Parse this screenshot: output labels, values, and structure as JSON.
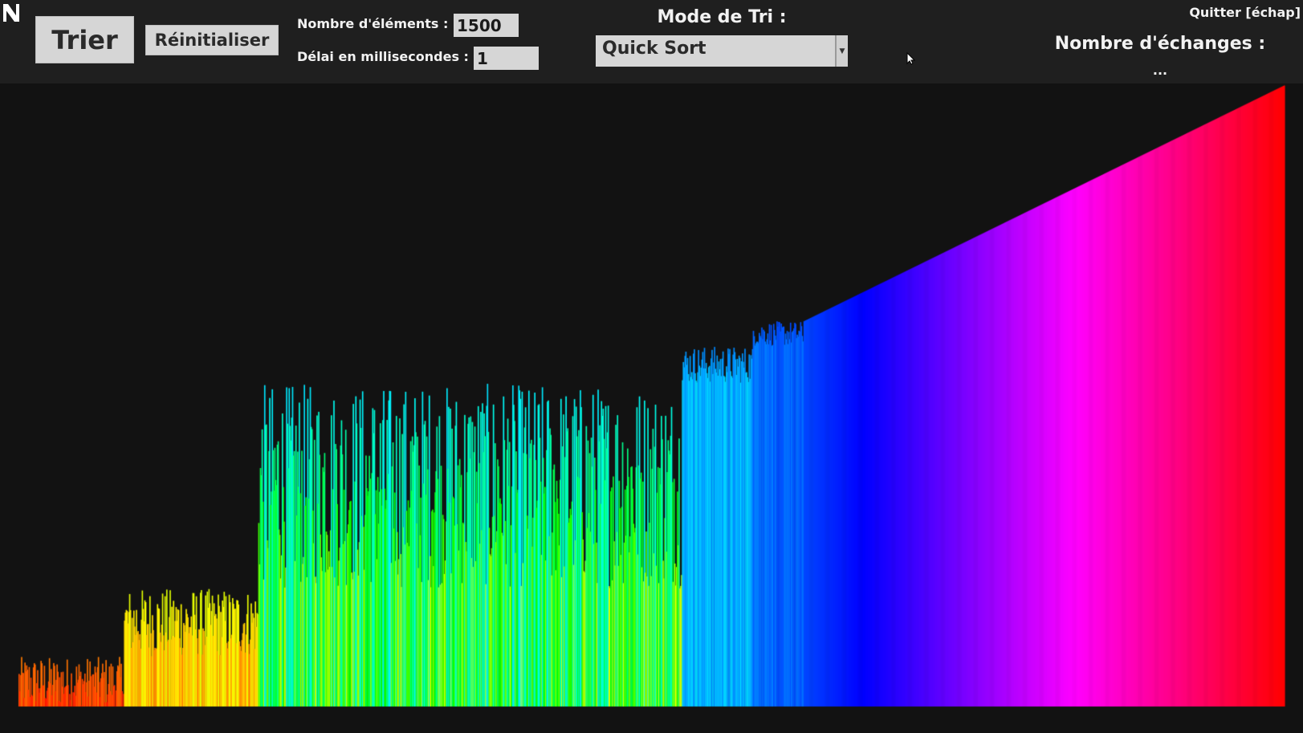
{
  "toolbar": {
    "sort_button": "Trier",
    "reset_button": "Réinitialiser",
    "count_label": "Nombre d'éléments :",
    "count_value": "1500",
    "delay_label": "Délai en millisecondes :",
    "delay_value": "1",
    "mode_label": "Mode de Tri :",
    "mode_selected": "Quick Sort",
    "quit_label": "Quitter [échap]",
    "swaps_label": "Nombre d'échanges :",
    "swaps_value": "..."
  },
  "icons": {
    "logo": "app-logo-icon",
    "dropdown": "chevron-down-icon",
    "cursor": "mouse-pointer-icon"
  },
  "colors": {
    "background": "#161616",
    "toolbar": "#1f1f1f",
    "control": "#d6d6d6"
  },
  "visualization": {
    "element_count": 1500,
    "coloring": "rainbow hue by value (red → yellow → green → cyan → blue → magenta → red)",
    "state": "partially sorted by Quick Sort: upper-value range sorted on the right, lower partitions still unsorted on the left"
  }
}
